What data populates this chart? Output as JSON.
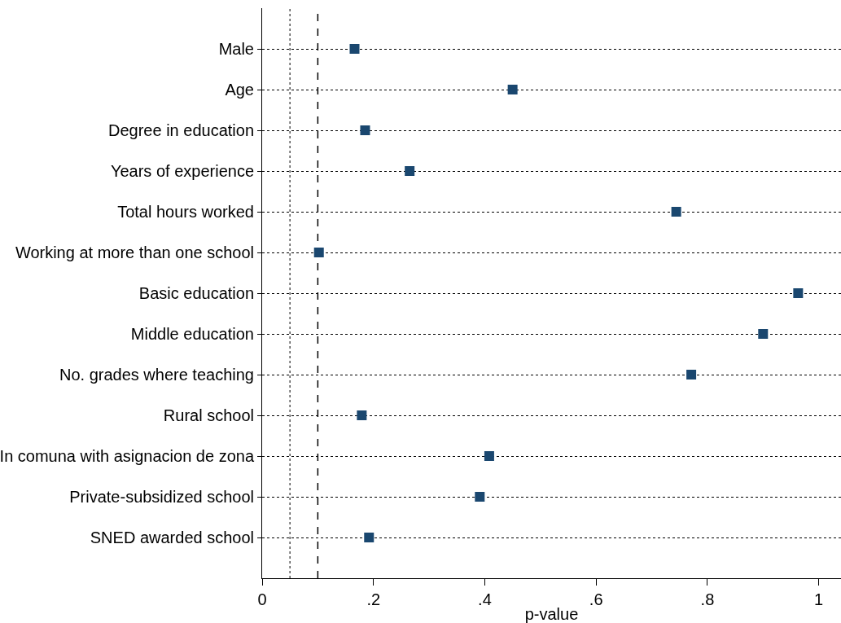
{
  "chart_data": {
    "type": "scatter",
    "orientation": "horizontal",
    "xlabel": "p-value",
    "categories": [
      "Male",
      "Age",
      "Degree in education",
      "Years of experience",
      "Total hours worked",
      "Working at more than one school",
      "Basic education",
      "Middle education",
      "No. grades where teaching",
      "Rural school",
      "In comuna with asignacion de zona",
      "Private-subsidized school",
      "SNED awarded school"
    ],
    "series": [
      {
        "color": "#1a476f",
        "values": [
          0.166,
          0.45,
          0.185,
          0.265,
          0.744,
          0.102,
          0.963,
          0.9,
          0.771,
          0.179,
          0.408,
          0.391,
          0.192
        ]
      }
    ],
    "xlim": [
      0,
      1.04
    ],
    "xticks": [
      0,
      {
        "value": 0.2,
        "label": ".2"
      },
      {
        "value": 0.4,
        "label": ".4"
      },
      {
        "value": 0.6,
        "label": ".6"
      },
      {
        "value": 0.8,
        "label": ".8"
      },
      1
    ],
    "ref_lines": [
      {
        "axis": "x",
        "value": 0.05,
        "line_style": "dotted",
        "color": "#555555"
      },
      {
        "axis": "x",
        "value": 0.1,
        "line_style": "dashed",
        "color": "#000000"
      }
    ],
    "grid": "y",
    "line_style": "dotted",
    "marker": "square",
    "legend": false
  }
}
